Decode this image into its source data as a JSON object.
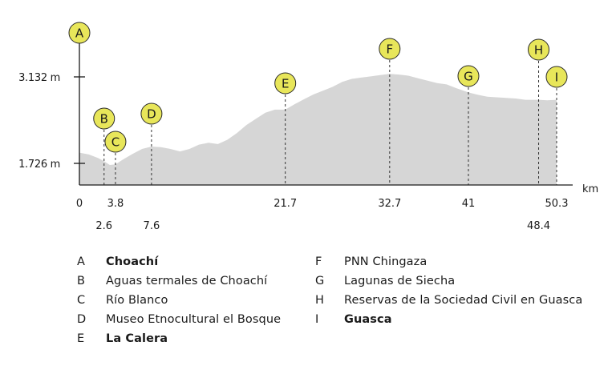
{
  "chart_data": {
    "type": "area",
    "xlabel": "km",
    "yticks": [
      {
        "value": 1726,
        "label": "1.726 m"
      },
      {
        "value": 3132,
        "label": "3.132 m"
      }
    ],
    "xticks": [
      {
        "value": 0,
        "label": "0",
        "row": 0
      },
      {
        "value": 2.6,
        "label": "2.6",
        "row": 1
      },
      {
        "value": 3.8,
        "label": "3.8",
        "row": 0
      },
      {
        "value": 7.6,
        "label": "7.6",
        "row": 1
      },
      {
        "value": 21.7,
        "label": "21.7",
        "row": 0
      },
      {
        "value": 32.7,
        "label": "32.7",
        "row": 0
      },
      {
        "value": 41,
        "label": "41",
        "row": 0
      },
      {
        "value": 48.4,
        "label": "48.4",
        "row": 1
      },
      {
        "value": 50.3,
        "label": "50.3",
        "row": 0
      }
    ],
    "profile": {
      "x": [
        0,
        1,
        2,
        2.6,
        3.2,
        3.8,
        4.6,
        5.6,
        6.6,
        7.6,
        8.6,
        9.6,
        10.6,
        11.6,
        12.6,
        13.6,
        14.6,
        15.6,
        16.6,
        17.6,
        18.6,
        19.6,
        20.6,
        21.7,
        22.7,
        23.7,
        24.7,
        25.7,
        26.7,
        27.7,
        28.7,
        29.7,
        30.7,
        31.7,
        32.7,
        33.7,
        34.7,
        35.7,
        36.7,
        37.7,
        38.7,
        39.7,
        41,
        42,
        43,
        44,
        45,
        46,
        47,
        48.4,
        49.3,
        50.3
      ],
      "y": [
        1900,
        1870,
        1810,
        1760,
        1700,
        1710,
        1790,
        1880,
        1960,
        2000,
        1990,
        1960,
        1920,
        1960,
        2030,
        2060,
        2040,
        2110,
        2220,
        2350,
        2450,
        2550,
        2600,
        2600,
        2690,
        2770,
        2850,
        2910,
        2970,
        3050,
        3100,
        3120,
        3140,
        3160,
        3180,
        3170,
        3150,
        3110,
        3070,
        3030,
        3010,
        2950,
        2880,
        2840,
        2810,
        2800,
        2790,
        2780,
        2760,
        2760,
        2750,
        2760
      ]
    },
    "waypoints": [
      {
        "letter": "A",
        "x": 0,
        "name": "Choachí",
        "bold": true
      },
      {
        "letter": "B",
        "x": 2.6,
        "name": "Aguas termales de Choachí",
        "bold": false
      },
      {
        "letter": "C",
        "x": 3.8,
        "name": "Río Blanco",
        "bold": false
      },
      {
        "letter": "D",
        "x": 7.6,
        "name": "Museo Etnocultural el Bosque",
        "bold": false
      },
      {
        "letter": "E",
        "x": 21.7,
        "name": "La Calera",
        "bold": true
      },
      {
        "letter": "F",
        "x": 32.7,
        "name": "PNN Chingaza",
        "bold": false
      },
      {
        "letter": "G",
        "x": 41,
        "name": "Lagunas de Siecha",
        "bold": false
      },
      {
        "letter": "H",
        "x": 48.4,
        "name": "Reservas de la  Sociedad Civil en Guasca",
        "bold": false
      },
      {
        "letter": "I",
        "x": 50.3,
        "name": "Guasca",
        "bold": true
      }
    ],
    "grid": false,
    "legend": "bottom"
  },
  "colors": {
    "area": "#d6d6d6",
    "marker_fill": "#e8e65a",
    "marker_stroke": "#2a2a2a",
    "axis": "#1a1a1a"
  }
}
